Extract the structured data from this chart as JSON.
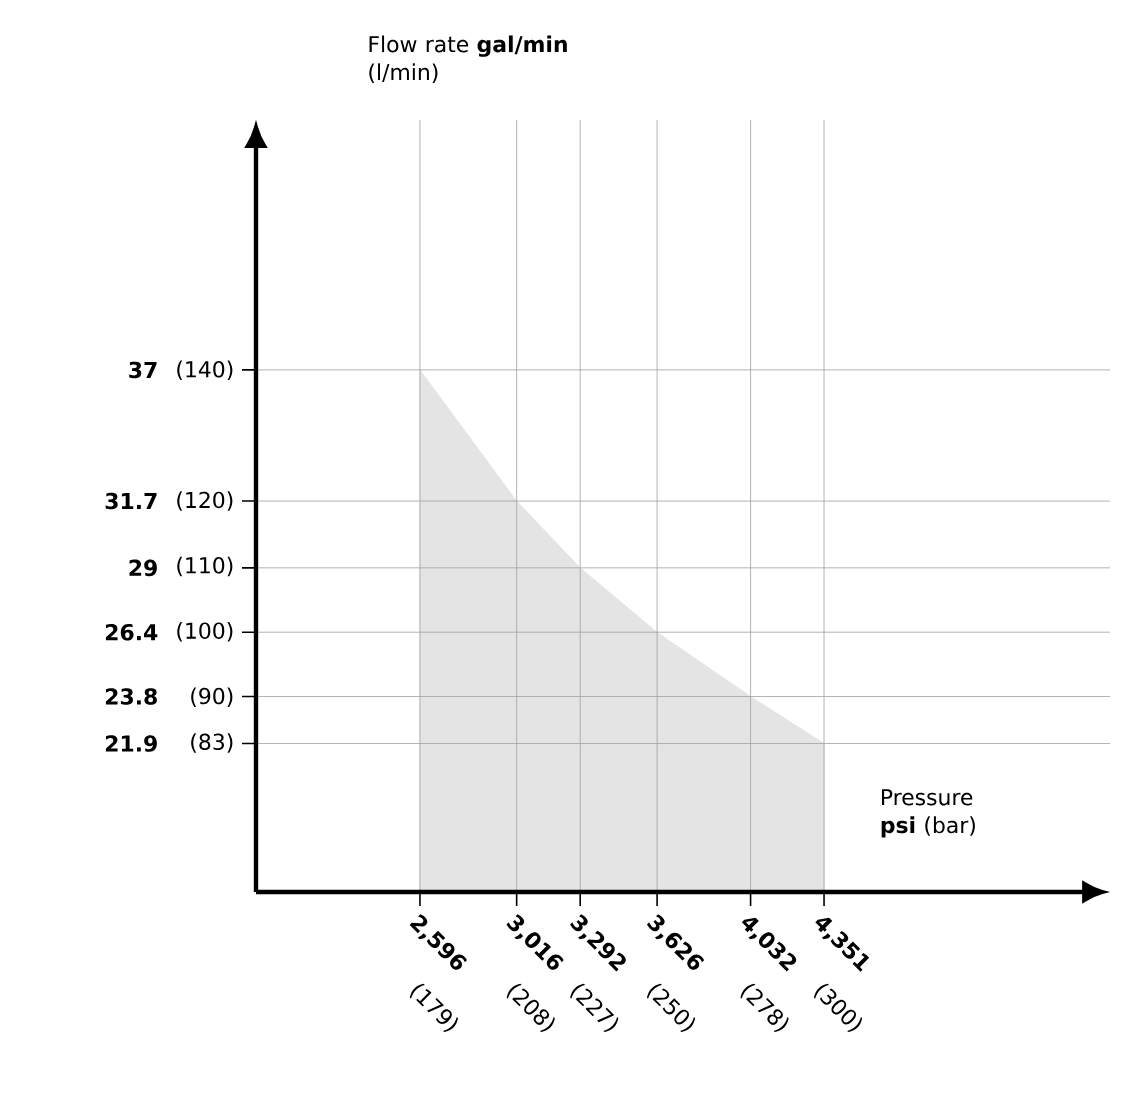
{
  "chart_data": {
    "type": "area",
    "xlabel": "Pressure **psi** (bar)",
    "ylabel": "Flow rate **gal/min** (l/min)",
    "x": [
      2596,
      3016,
      3292,
      3626,
      4032,
      4351
    ],
    "series": [
      {
        "color": "#e4e4e4",
        "values": [
          37,
          31.7,
          29,
          26.4,
          23.8,
          21.9
        ]
      }
    ],
    "xlim": [
      1884,
      5593
    ],
    "ylim": [
      15.9,
      47.1
    ],
    "xticks": [
      {
        "value": 2596,
        "label": "2,596"
      },
      {
        "value": 3016,
        "label": "3,016"
      },
      {
        "value": 3292,
        "label": "3,292"
      },
      {
        "value": 3626,
        "label": "3,626"
      },
      {
        "value": 4032,
        "label": "4,032"
      },
      {
        "value": 4351,
        "label": "4,351"
      }
    ],
    "yticks": [
      21.9,
      23.8,
      26.4,
      29,
      31.7,
      37
    ],
    "x2lim": [
      129.9,
      385.6
    ],
    "x2ticks": [
      {
        "value": 179,
        "label": "(179)"
      },
      {
        "value": 208,
        "label": "(208)"
      },
      {
        "value": 227,
        "label": "(227)"
      },
      {
        "value": 250,
        "label": "(250)"
      },
      {
        "value": 278,
        "label": "(278)"
      },
      {
        "value": 300,
        "label": "(300)"
      }
    ],
    "y2lim": [
      60.19,
      178.3
    ],
    "y2ticks": [
      {
        "value": 83,
        "label": "(83)"
      },
      {
        "value": 90,
        "label": "(90)"
      },
      {
        "value": 100,
        "label": "(100)"
      },
      {
        "value": 110,
        "label": "(110)"
      },
      {
        "value": 120,
        "label": "(120)"
      },
      {
        "value": 140,
        "label": "(140)"
      }
    ],
    "grid": true
  }
}
